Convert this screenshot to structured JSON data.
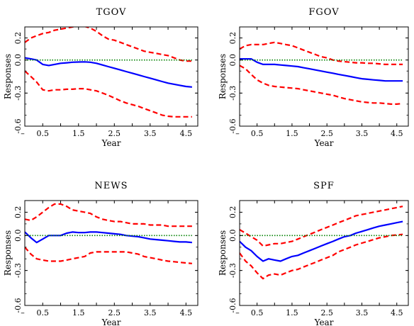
{
  "chart_data": [
    {
      "type": "line",
      "title": "TGOV",
      "xlabel": "Year",
      "ylabel": "Responses",
      "xlim": [
        0,
        4.83
      ],
      "ylim": [
        -0.6,
        0.3
      ],
      "xticks": [
        "0.5",
        "1.5",
        "2.5",
        "3.5",
        "4.5"
      ],
      "yticks": [
        "0.2",
        "0.0",
        "-0.3",
        "-0.6"
      ],
      "x": [
        0.0,
        0.17,
        0.33,
        0.5,
        0.67,
        0.83,
        1.0,
        1.17,
        1.33,
        1.5,
        1.67,
        1.83,
        2.0,
        2.17,
        2.33,
        2.5,
        2.67,
        2.83,
        3.0,
        3.17,
        3.33,
        3.5,
        3.67,
        3.83,
        4.0,
        4.17,
        4.33,
        4.5,
        4.67
      ],
      "series": [
        {
          "values": [
            0.02,
            0.01,
            0.0,
            -0.04,
            -0.05,
            -0.04,
            -0.03,
            -0.025,
            -0.02,
            -0.018,
            -0.017,
            -0.02,
            -0.03,
            -0.045,
            -0.06,
            -0.075,
            -0.09,
            -0.105,
            -0.12,
            -0.135,
            -0.15,
            -0.165,
            -0.18,
            -0.195,
            -0.21,
            -0.22,
            -0.23,
            -0.24,
            -0.245
          ]
        },
        {
          "values": [
            0.16,
            0.2,
            0.22,
            0.24,
            0.25,
            0.27,
            0.28,
            0.29,
            0.3,
            0.31,
            0.305,
            0.29,
            0.26,
            0.22,
            0.19,
            0.18,
            0.16,
            0.14,
            0.12,
            0.1,
            0.08,
            0.07,
            0.06,
            0.05,
            0.04,
            0.02,
            0.0,
            -0.01,
            -0.01
          ]
        },
        {
          "values": [
            -0.1,
            -0.15,
            -0.2,
            -0.27,
            -0.28,
            -0.27,
            -0.27,
            -0.265,
            -0.265,
            -0.26,
            -0.26,
            -0.27,
            -0.28,
            -0.3,
            -0.32,
            -0.345,
            -0.37,
            -0.39,
            -0.405,
            -0.42,
            -0.44,
            -0.46,
            -0.48,
            -0.5,
            -0.51,
            -0.515,
            -0.515,
            -0.515,
            -0.515
          ]
        },
        {
          "values": [
            0,
            0,
            0,
            0,
            0,
            0,
            0,
            0,
            0,
            0,
            0,
            0,
            0,
            0,
            0,
            0,
            0,
            0,
            0,
            0,
            0,
            0,
            0,
            0,
            0,
            0,
            0,
            0,
            0
          ]
        }
      ]
    },
    {
      "type": "line",
      "title": "FGOV",
      "xlabel": "Year",
      "ylabel": "Responses",
      "xlim": [
        0,
        4.83
      ],
      "ylim": [
        -0.6,
        0.3
      ],
      "xticks": [
        "0.5",
        "1.5",
        "2.5",
        "3.5",
        "4.5"
      ],
      "yticks": [
        "0.2",
        "0.0",
        "-0.3",
        "-0.6"
      ],
      "x": [
        0.0,
        0.17,
        0.33,
        0.5,
        0.67,
        0.83,
        1.0,
        1.17,
        1.33,
        1.5,
        1.67,
        1.83,
        2.0,
        2.17,
        2.33,
        2.5,
        2.67,
        2.83,
        3.0,
        3.17,
        3.33,
        3.5,
        3.67,
        3.83,
        4.0,
        4.17,
        4.33,
        4.5,
        4.67
      ],
      "series": [
        {
          "values": [
            0.01,
            0.01,
            0.01,
            -0.02,
            -0.04,
            -0.04,
            -0.04,
            -0.045,
            -0.05,
            -0.055,
            -0.06,
            -0.07,
            -0.08,
            -0.09,
            -0.1,
            -0.11,
            -0.12,
            -0.13,
            -0.14,
            -0.15,
            -0.16,
            -0.17,
            -0.175,
            -0.18,
            -0.185,
            -0.19,
            -0.19,
            -0.19,
            -0.19
          ]
        },
        {
          "values": [
            0.1,
            0.13,
            0.14,
            0.14,
            0.14,
            0.15,
            0.16,
            0.15,
            0.14,
            0.13,
            0.11,
            0.09,
            0.07,
            0.05,
            0.03,
            0.02,
            0.0,
            -0.01,
            -0.015,
            -0.02,
            -0.025,
            -0.025,
            -0.03,
            -0.03,
            -0.035,
            -0.04,
            -0.04,
            -0.04,
            -0.04
          ]
        },
        {
          "values": [
            -0.05,
            -0.08,
            -0.13,
            -0.18,
            -0.21,
            -0.23,
            -0.24,
            -0.245,
            -0.25,
            -0.255,
            -0.26,
            -0.27,
            -0.28,
            -0.29,
            -0.3,
            -0.31,
            -0.32,
            -0.335,
            -0.35,
            -0.36,
            -0.37,
            -0.38,
            -0.385,
            -0.39,
            -0.39,
            -0.395,
            -0.4,
            -0.4,
            -0.395
          ]
        },
        {
          "values": [
            0,
            0,
            0,
            0,
            0,
            0,
            0,
            0,
            0,
            0,
            0,
            0,
            0,
            0,
            0,
            0,
            0,
            0,
            0,
            0,
            0,
            0,
            0,
            0,
            0,
            0,
            0,
            0,
            0
          ]
        }
      ]
    },
    {
      "type": "line",
      "title": "NEWS",
      "xlabel": "Year",
      "ylabel": "Responses",
      "xlim": [
        0,
        4.83
      ],
      "ylim": [
        -0.6,
        0.3
      ],
      "xticks": [
        "0.5",
        "1.5",
        "2.5",
        "3.5",
        "4.5"
      ],
      "yticks": [
        "0.2",
        "0.0",
        "-0.3",
        "-0.6"
      ],
      "x": [
        0.0,
        0.17,
        0.33,
        0.5,
        0.67,
        0.83,
        1.0,
        1.17,
        1.33,
        1.5,
        1.67,
        1.83,
        2.0,
        2.17,
        2.33,
        2.5,
        2.67,
        2.83,
        3.0,
        3.17,
        3.33,
        3.5,
        3.67,
        3.83,
        4.0,
        4.17,
        4.33,
        4.5,
        4.67
      ],
      "series": [
        {
          "values": [
            0.03,
            -0.02,
            -0.06,
            -0.03,
            0.0,
            0.0,
            0.0,
            0.02,
            0.03,
            0.025,
            0.025,
            0.03,
            0.03,
            0.025,
            0.02,
            0.015,
            0.01,
            0.0,
            -0.005,
            -0.01,
            -0.02,
            -0.03,
            -0.035,
            -0.04,
            -0.045,
            -0.05,
            -0.055,
            -0.055,
            -0.06
          ]
        },
        {
          "values": [
            0.14,
            0.13,
            0.16,
            0.2,
            0.24,
            0.27,
            0.27,
            0.25,
            0.22,
            0.21,
            0.2,
            0.19,
            0.16,
            0.14,
            0.13,
            0.12,
            0.12,
            0.11,
            0.1,
            0.1,
            0.1,
            0.09,
            0.09,
            0.09,
            0.08,
            0.08,
            0.08,
            0.08,
            0.08
          ]
        },
        {
          "values": [
            -0.1,
            -0.16,
            -0.2,
            -0.21,
            -0.22,
            -0.22,
            -0.22,
            -0.21,
            -0.2,
            -0.19,
            -0.18,
            -0.15,
            -0.14,
            -0.14,
            -0.14,
            -0.14,
            -0.14,
            -0.14,
            -0.15,
            -0.16,
            -0.18,
            -0.19,
            -0.2,
            -0.21,
            -0.22,
            -0.225,
            -0.23,
            -0.235,
            -0.24
          ]
        },
        {
          "values": [
            0,
            0,
            0,
            0,
            0,
            0,
            0,
            0,
            0,
            0,
            0,
            0,
            0,
            0,
            0,
            0,
            0,
            0,
            0,
            0,
            0,
            0,
            0,
            0,
            0,
            0,
            0,
            0,
            0
          ]
        }
      ]
    },
    {
      "type": "line",
      "title": "SPF",
      "xlabel": "Year",
      "ylabel": "Responses",
      "xlim": [
        0,
        4.83
      ],
      "ylim": [
        -0.6,
        0.3
      ],
      "xticks": [
        "0.5",
        "1.5",
        "2.5",
        "3.5",
        "4.5"
      ],
      "yticks": [
        "0.2",
        "0.0",
        "-0.3",
        "-0.6"
      ],
      "x": [
        0.0,
        0.17,
        0.33,
        0.5,
        0.67,
        0.83,
        1.0,
        1.17,
        1.33,
        1.5,
        1.67,
        1.83,
        2.0,
        2.17,
        2.33,
        2.5,
        2.67,
        2.83,
        3.0,
        3.17,
        3.33,
        3.5,
        3.67,
        3.83,
        4.0,
        4.17,
        4.33,
        4.5,
        4.67
      ],
      "series": [
        {
          "values": [
            -0.05,
            -0.1,
            -0.13,
            -0.18,
            -0.22,
            -0.2,
            -0.21,
            -0.22,
            -0.2,
            -0.18,
            -0.17,
            -0.15,
            -0.13,
            -0.11,
            -0.09,
            -0.07,
            -0.05,
            -0.03,
            -0.01,
            0.0,
            0.02,
            0.035,
            0.05,
            0.065,
            0.08,
            0.09,
            0.1,
            0.11,
            0.12
          ]
        },
        {
          "values": [
            0.05,
            0.02,
            -0.01,
            -0.04,
            -0.09,
            -0.08,
            -0.07,
            -0.07,
            -0.06,
            -0.05,
            -0.03,
            -0.01,
            0.01,
            0.03,
            0.05,
            0.07,
            0.09,
            0.11,
            0.13,
            0.15,
            0.17,
            0.18,
            0.19,
            0.2,
            0.21,
            0.22,
            0.23,
            0.24,
            0.25
          ]
        },
        {
          "values": [
            -0.15,
            -0.22,
            -0.26,
            -0.32,
            -0.37,
            -0.34,
            -0.33,
            -0.34,
            -0.32,
            -0.3,
            -0.29,
            -0.27,
            -0.25,
            -0.23,
            -0.21,
            -0.19,
            -0.17,
            -0.14,
            -0.12,
            -0.1,
            -0.08,
            -0.065,
            -0.05,
            -0.035,
            -0.02,
            -0.01,
            0.0,
            0.005,
            0.01
          ]
        },
        {
          "values": [
            0,
            0,
            0,
            0,
            0,
            0,
            0,
            0,
            0,
            0,
            0,
            0,
            0,
            0,
            0,
            0,
            0,
            0,
            0,
            0,
            0,
            0,
            0,
            0,
            0,
            0,
            0,
            0,
            0
          ]
        }
      ]
    }
  ],
  "colors": {
    "median": "#0000ff",
    "band": "#ff0000",
    "zero": "#008000",
    "frame": "#000000"
  },
  "styles": [
    "solid",
    "dashed",
    "dashed",
    "dotted"
  ]
}
